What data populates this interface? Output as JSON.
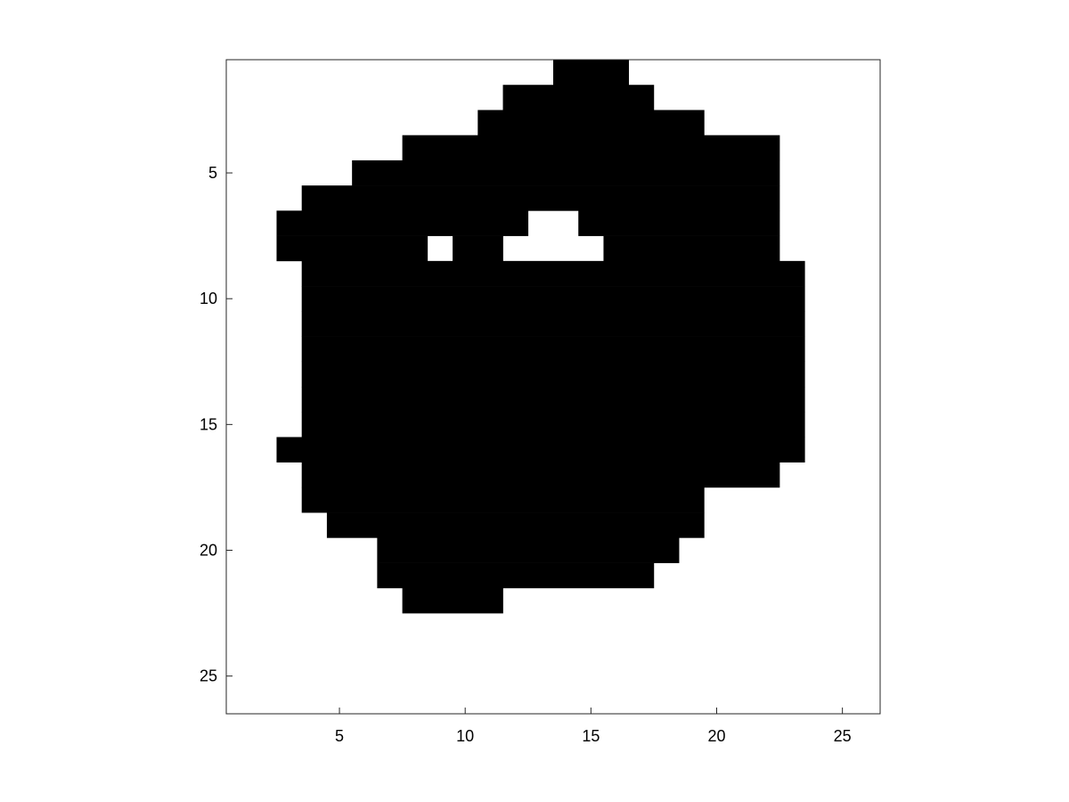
{
  "chart_data": {
    "type": "heatmap",
    "title": "",
    "xlabel": "",
    "ylabel": "",
    "xlim": [
      0.5,
      26.5
    ],
    "ylim": [
      0.5,
      26.5
    ],
    "y_direction": "reversed",
    "grid": false,
    "colormap": {
      "0": "#ffffff",
      "1": "#000000"
    },
    "xticks": [
      5,
      10,
      15,
      20,
      25
    ],
    "yticks": [
      5,
      10,
      15,
      20,
      25
    ],
    "rows": [
      {
        "row": 1,
        "filled_runs": [
          [
            14,
            16
          ]
        ]
      },
      {
        "row": 2,
        "filled_runs": [
          [
            12,
            17
          ]
        ]
      },
      {
        "row": 3,
        "filled_runs": [
          [
            11,
            19
          ]
        ]
      },
      {
        "row": 4,
        "filled_runs": [
          [
            8,
            22
          ]
        ]
      },
      {
        "row": 5,
        "filled_runs": [
          [
            6,
            22
          ]
        ]
      },
      {
        "row": 6,
        "filled_runs": [
          [
            4,
            22
          ]
        ]
      },
      {
        "row": 7,
        "filled_runs": [
          [
            3,
            12
          ],
          [
            15,
            22
          ]
        ]
      },
      {
        "row": 8,
        "filled_runs": [
          [
            3,
            8
          ],
          [
            10,
            11
          ],
          [
            16,
            22
          ]
        ]
      },
      {
        "row": 9,
        "filled_runs": [
          [
            4,
            23
          ]
        ]
      },
      {
        "row": 10,
        "filled_runs": [
          [
            4,
            23
          ]
        ]
      },
      {
        "row": 11,
        "filled_runs": [
          [
            4,
            23
          ]
        ]
      },
      {
        "row": 12,
        "filled_runs": [
          [
            4,
            23
          ]
        ]
      },
      {
        "row": 13,
        "filled_runs": [
          [
            4,
            23
          ]
        ]
      },
      {
        "row": 14,
        "filled_runs": [
          [
            4,
            23
          ]
        ]
      },
      {
        "row": 15,
        "filled_runs": [
          [
            4,
            23
          ]
        ]
      },
      {
        "row": 16,
        "filled_runs": [
          [
            3,
            23
          ]
        ]
      },
      {
        "row": 17,
        "filled_runs": [
          [
            4,
            22
          ]
        ]
      },
      {
        "row": 18,
        "filled_runs": [
          [
            4,
            19
          ]
        ]
      },
      {
        "row": 19,
        "filled_runs": [
          [
            5,
            19
          ]
        ]
      },
      {
        "row": 20,
        "filled_runs": [
          [
            7,
            18
          ]
        ]
      },
      {
        "row": 21,
        "filled_runs": [
          [
            7,
            17
          ]
        ]
      },
      {
        "row": 22,
        "filled_runs": [
          [
            8,
            11
          ]
        ]
      }
    ]
  }
}
